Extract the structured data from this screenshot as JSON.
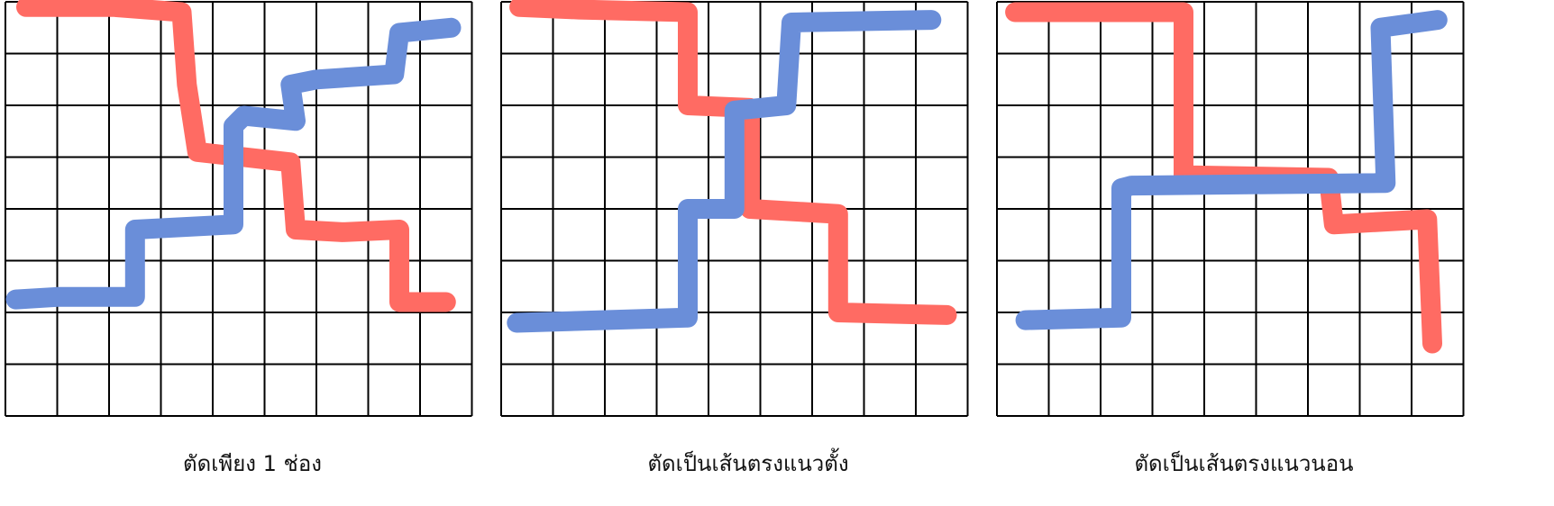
{
  "grid": {
    "rows": 8,
    "cols": 9,
    "line_color": "#000000"
  },
  "colors": {
    "red": "#FF6B63",
    "blue": "#6A8ED9"
  },
  "panels": [
    {
      "caption": "ตัดเพียง 1 ช่อง",
      "red_path": [
        [
          0.4,
          0.1
        ],
        [
          2.1,
          0.1
        ],
        [
          3.4,
          0.2
        ],
        [
          3.5,
          1.6
        ],
        [
          3.7,
          2.9
        ],
        [
          4.6,
          3.0
        ],
        [
          5.5,
          3.1
        ],
        [
          5.6,
          4.4
        ],
        [
          6.5,
          4.45
        ],
        [
          7.6,
          4.4
        ],
        [
          7.6,
          5.8
        ],
        [
          8.5,
          5.8
        ]
      ],
      "blue_path": [
        [
          0.2,
          5.75
        ],
        [
          1.0,
          5.7
        ],
        [
          2.5,
          5.7
        ],
        [
          2.5,
          4.4
        ],
        [
          4.4,
          4.3
        ],
        [
          4.4,
          2.4
        ],
        [
          4.6,
          2.2
        ],
        [
          5.6,
          2.3
        ],
        [
          5.5,
          1.6
        ],
        [
          6.0,
          1.5
        ],
        [
          7.5,
          1.4
        ],
        [
          7.6,
          0.6
        ],
        [
          8.6,
          0.5
        ]
      ]
    },
    {
      "caption": "ตัดเป็นเส้นตรงแนวตั้ง",
      "red_path": [
        [
          0.35,
          0.1
        ],
        [
          1.5,
          0.15
        ],
        [
          3.6,
          0.2
        ],
        [
          3.6,
          2.0
        ],
        [
          4.8,
          2.05
        ],
        [
          4.8,
          4.0
        ],
        [
          6.5,
          4.1
        ],
        [
          6.5,
          6.0
        ],
        [
          8.6,
          6.05
        ]
      ],
      "blue_path": [
        [
          0.3,
          6.2
        ],
        [
          3.6,
          6.1
        ],
        [
          3.6,
          4.0
        ],
        [
          4.5,
          4.0
        ],
        [
          4.5,
          2.1
        ],
        [
          5.5,
          2.0
        ],
        [
          5.6,
          0.4
        ],
        [
          8.3,
          0.35
        ]
      ]
    },
    {
      "caption": "ตัดเป็นเส้นตรงแนวนอน",
      "red_path": [
        [
          0.35,
          0.2
        ],
        [
          3.6,
          0.2
        ],
        [
          3.6,
          3.35
        ],
        [
          6.4,
          3.4
        ],
        [
          6.5,
          4.3
        ],
        [
          8.3,
          4.2
        ],
        [
          8.4,
          6.6
        ]
      ],
      "blue_path": [
        [
          0.55,
          6.15
        ],
        [
          2.4,
          6.1
        ],
        [
          2.4,
          3.6
        ],
        [
          2.6,
          3.55
        ],
        [
          7.5,
          3.5
        ],
        [
          7.4,
          0.5
        ],
        [
          8.5,
          0.35
        ]
      ]
    }
  ]
}
